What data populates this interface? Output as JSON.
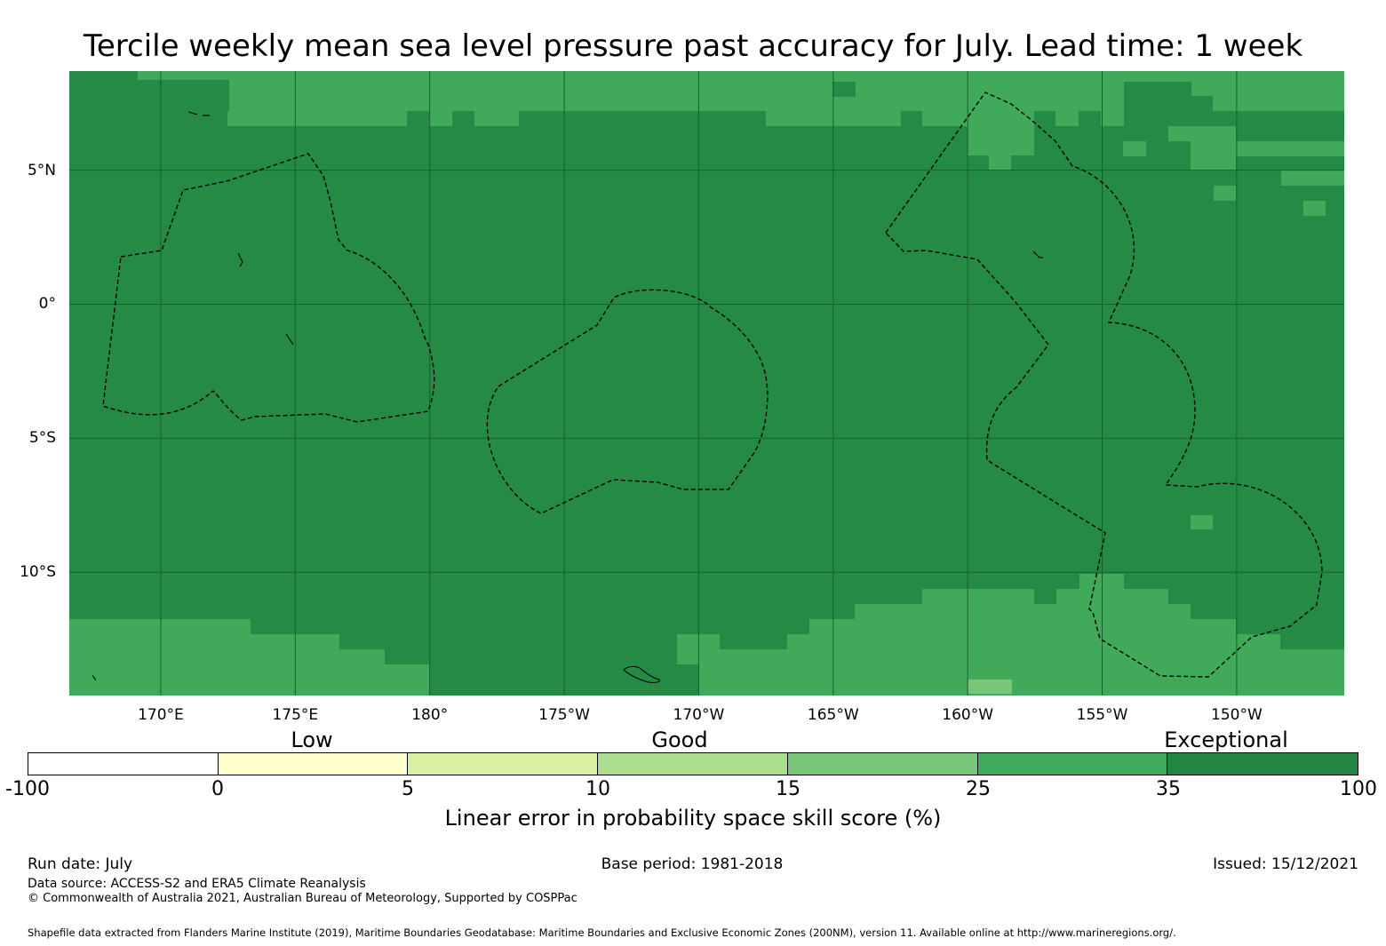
{
  "title": "Tercile weekly mean sea level pressure past accuracy for July. Lead time: 1 week",
  "map": {
    "x_ticks": [
      {
        "lon": 170,
        "label": "170°E"
      },
      {
        "lon": 175,
        "label": "175°E"
      },
      {
        "lon": 180,
        "label": "180°"
      },
      {
        "lon": 185,
        "label": "175°W"
      },
      {
        "lon": 190,
        "label": "170°W"
      },
      {
        "lon": 195,
        "label": "165°W"
      },
      {
        "lon": 200,
        "label": "160°W"
      },
      {
        "lon": 205,
        "label": "155°W"
      },
      {
        "lon": 210,
        "label": "150°W"
      }
    ],
    "y_ticks": [
      {
        "lat": 5,
        "label": "5°N"
      },
      {
        "lat": 0,
        "label": "0°"
      },
      {
        "lat": -5,
        "label": "5°S"
      },
      {
        "lat": -10,
        "label": "10°S"
      }
    ],
    "lon_range": [
      166.6,
      214.0
    ],
    "lat_range": [
      -14.6,
      8.7
    ],
    "colors": {
      "skill_35_100": "#248a45",
      "skill_25_35": "#40a95a",
      "skill_15_25": "#7ac577",
      "grid": "#16602f",
      "eez": "#000000"
    }
  },
  "colorbar": {
    "categories": [
      "Low",
      "Good",
      "Exceptional"
    ],
    "tick_labels": [
      "-100",
      "0",
      "5",
      "10",
      "15",
      "25",
      "35",
      "100"
    ],
    "colors": [
      "#ffffff",
      "#ffffcc",
      "#d9f0a3",
      "#addd8e",
      "#78c679",
      "#41ab5d",
      "#238443"
    ],
    "label": "Linear error in probability space skill score (%)"
  },
  "footer": {
    "run_date": "Run date: July",
    "base_period": "Base period: 1981-2018",
    "issued": "Issued: 15/12/2021",
    "data_source": "Data source: ACCESS-S2 and ERA5 Climate Reanalysis",
    "copyright": "© Commonwealth of Australia 2021, Australian Bureau of Meteorology, Supported by COSPPac",
    "shapefile": "Shapefile data extracted from Flanders Marine Institute (2019), Maritime Boundaries Geodatabase: Maritime Boundaries and Exclusive Economic Zones (200NM), version 11. Available online at http://www.marineregions.org/."
  }
}
